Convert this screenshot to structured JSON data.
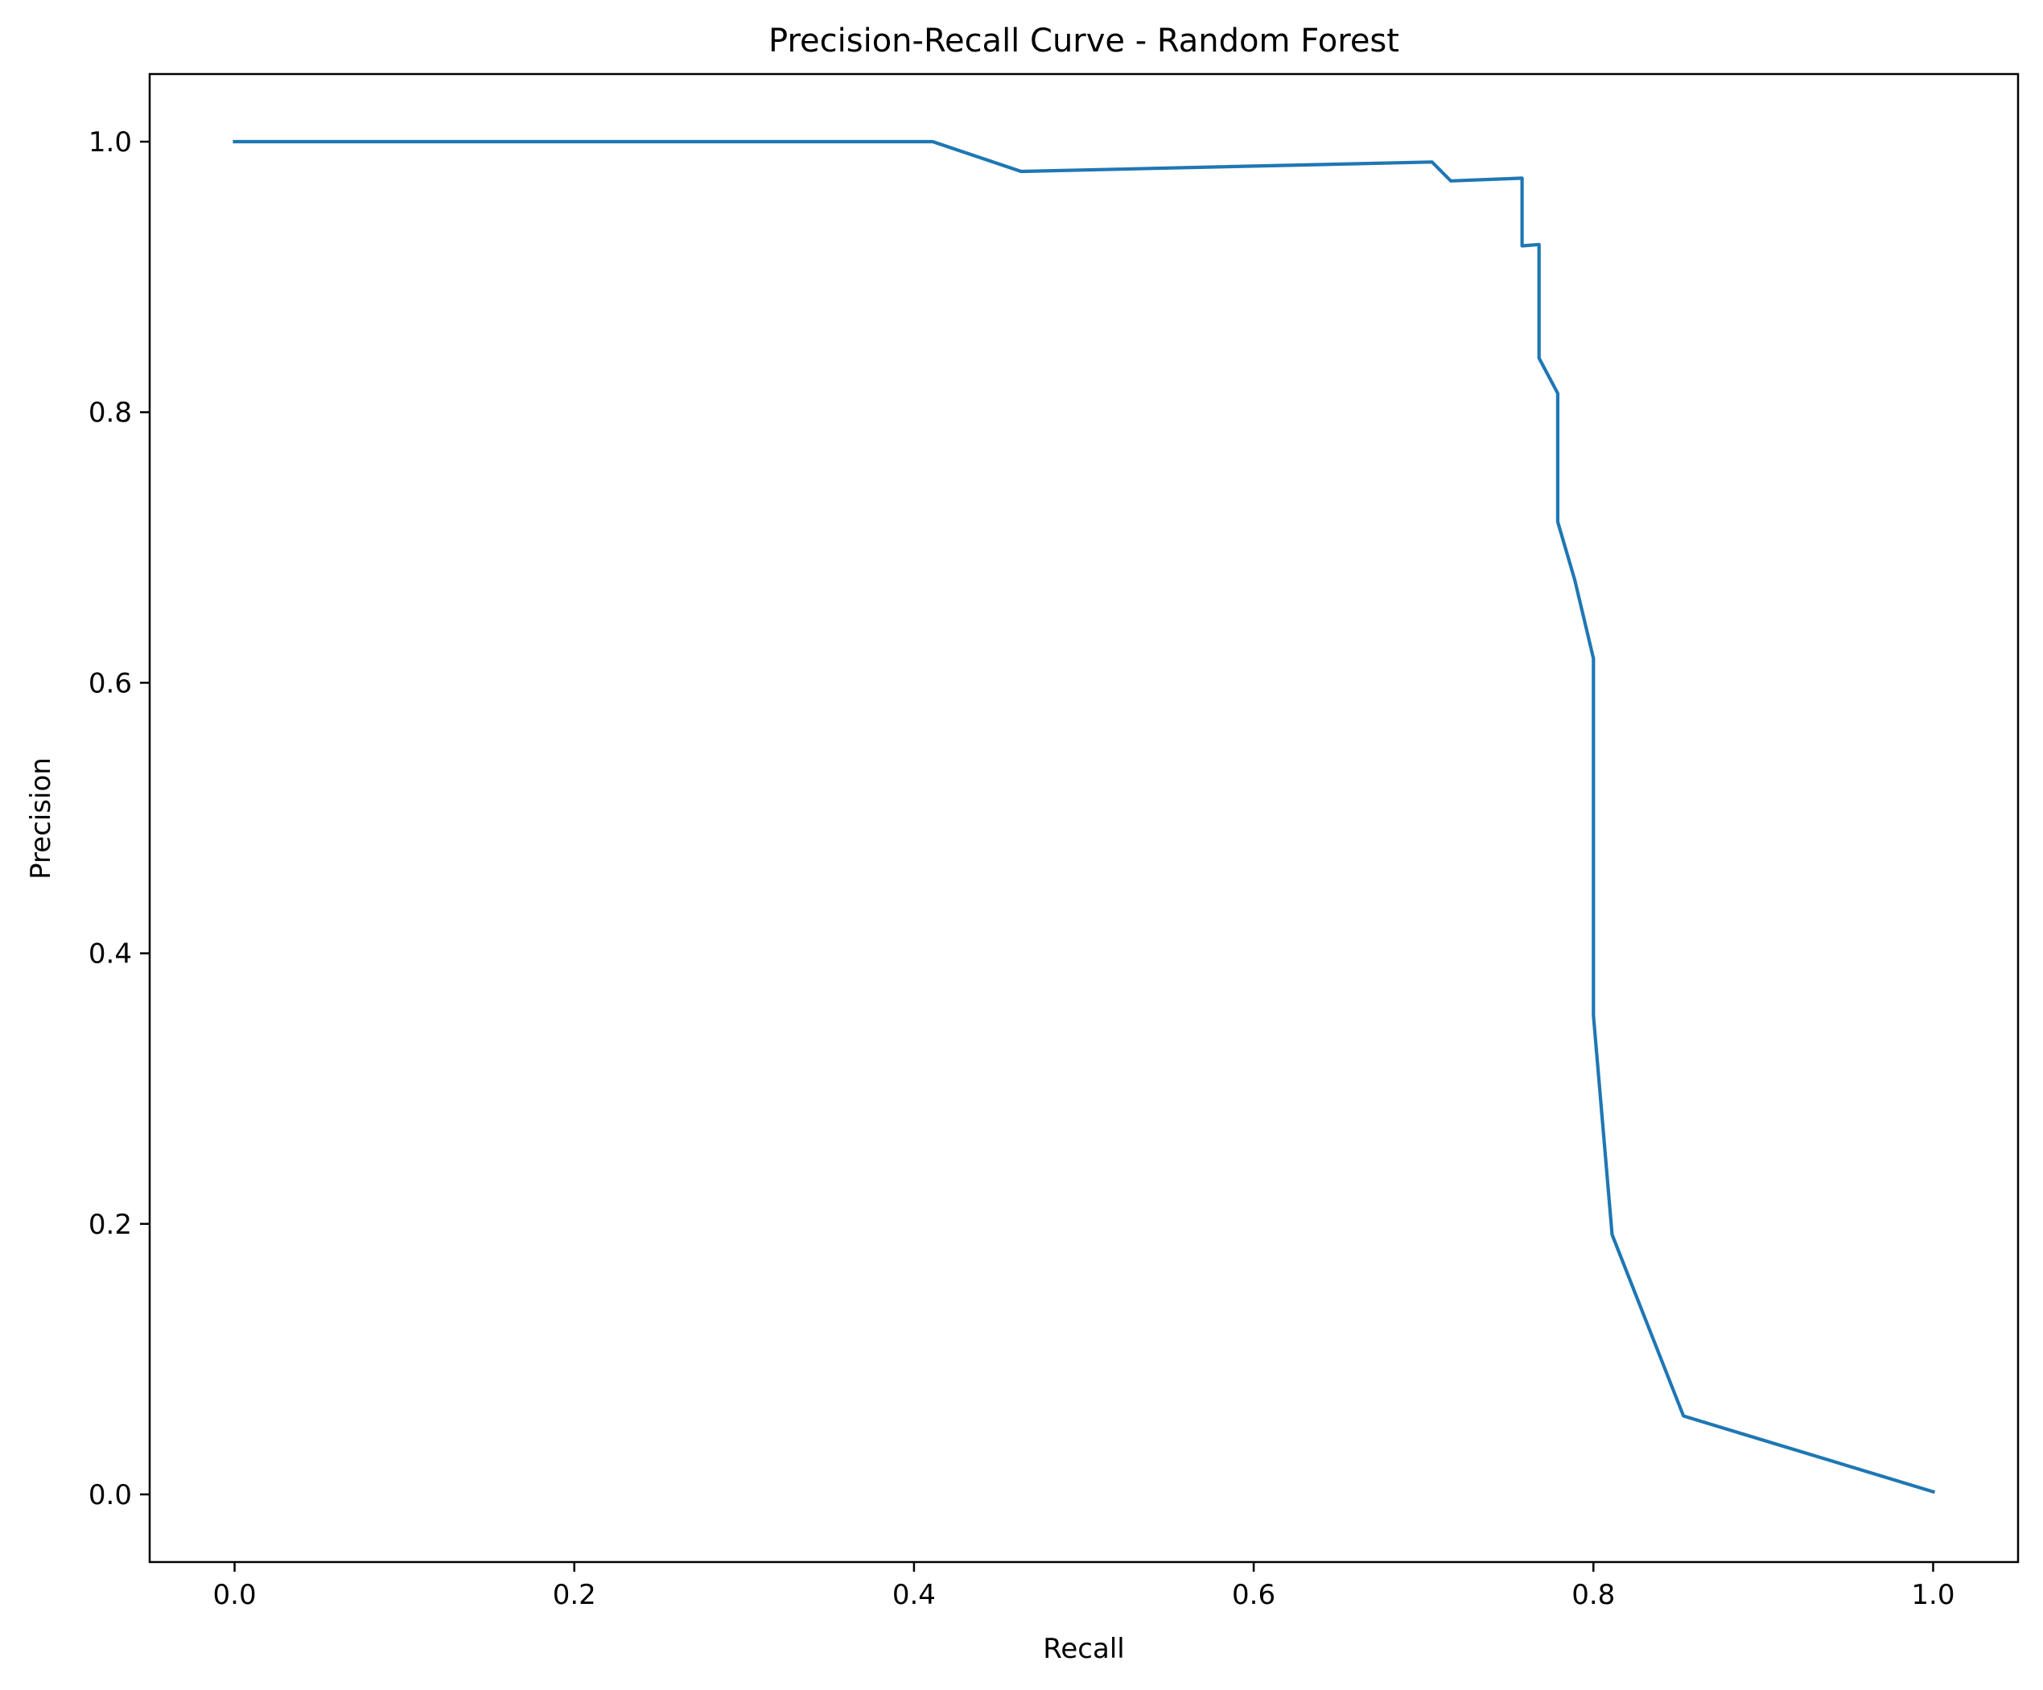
{
  "chart_data": {
    "type": "line",
    "title": "Precision-Recall Curve - Random Forest",
    "xlabel": "Recall",
    "ylabel": "Precision",
    "xlim": [
      -0.05,
      1.05
    ],
    "ylim": [
      -0.05,
      1.05
    ],
    "grid": false,
    "x_ticks": [
      {
        "value": 0.0,
        "label": "0.0"
      },
      {
        "value": 0.2,
        "label": "0.2"
      },
      {
        "value": 0.4,
        "label": "0.4"
      },
      {
        "value": 0.6,
        "label": "0.6"
      },
      {
        "value": 0.8,
        "label": "0.8"
      },
      {
        "value": 1.0,
        "label": "1.0"
      }
    ],
    "y_ticks": [
      {
        "value": 0.0,
        "label": "0.0"
      },
      {
        "value": 0.2,
        "label": "0.2"
      },
      {
        "value": 0.4,
        "label": "0.4"
      },
      {
        "value": 0.6,
        "label": "0.6"
      },
      {
        "value": 0.8,
        "label": "0.8"
      },
      {
        "value": 1.0,
        "label": "1.0"
      }
    ],
    "series": [
      {
        "color": "#1f77b4",
        "x": [
          0.0,
          0.411,
          0.463,
          0.705,
          0.716,
          0.758,
          0.758,
          0.768,
          0.768,
          0.779,
          0.779,
          0.789,
          0.8,
          0.8,
          0.8,
          0.811,
          0.853,
          1.0
        ],
        "y": [
          1.0,
          1.0,
          0.978,
          0.985,
          0.971,
          0.973,
          0.923,
          0.924,
          0.84,
          0.814,
          0.719,
          0.676,
          0.618,
          0.5,
          0.354,
          0.192,
          0.058,
          0.002
        ]
      }
    ]
  }
}
